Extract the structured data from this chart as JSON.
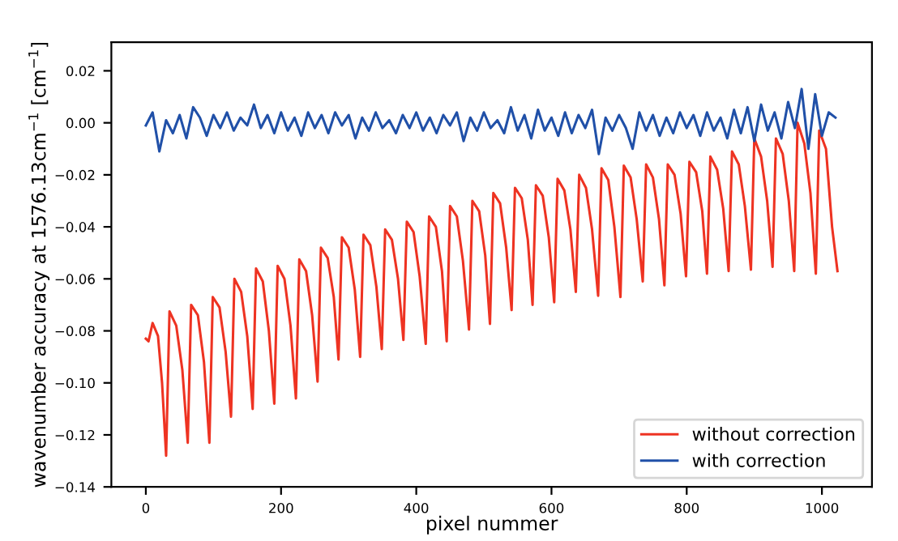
{
  "chart_data": {
    "type": "line",
    "xlabel": "pixel nummer",
    "ylabel": "wavenumber accuracy at 1576.13cm$^{−1}$ [cm$^{−1}$]",
    "xlim": [
      -51,
      1074
    ],
    "xticks": [
      0,
      200,
      400,
      600,
      800,
      1000
    ],
    "ylim": [
      -0.14,
      0.031
    ],
    "yticks": [
      {
        "value": -0.14,
        "label": "−0.14"
      },
      {
        "value": -0.12,
        "label": "−0.12"
      },
      {
        "value": -0.1,
        "label": "−0.10"
      },
      {
        "value": -0.08,
        "label": "−0.08"
      },
      {
        "value": -0.06,
        "label": "−0.06"
      },
      {
        "value": -0.04,
        "label": "−0.04"
      },
      {
        "value": -0.02,
        "label": "−0.02"
      },
      {
        "value": 0,
        "label": "0.00"
      },
      {
        "value": 0.02,
        "label": "0.02"
      }
    ],
    "grid": false,
    "legend": "bottom right",
    "marker": "none",
    "line_style": "solid",
    "series": [
      {
        "name": "without correction",
        "color": "#ee3322",
        "x": [
          0,
          4,
          10,
          18,
          24,
          30,
          35,
          45,
          54,
          62,
          67,
          77,
          86,
          94,
          99,
          109,
          118,
          126,
          131,
          141,
          150,
          158,
          163,
          173,
          182,
          190,
          195,
          205,
          214,
          222,
          227,
          237,
          246,
          254,
          259,
          269,
          278,
          285,
          290,
          300,
          309,
          317,
          322,
          332,
          341,
          349,
          354,
          364,
          373,
          381,
          386,
          396,
          405,
          414,
          419,
          429,
          438,
          445,
          450,
          460,
          469,
          478,
          483,
          493,
          502,
          509,
          514,
          524,
          533,
          541,
          546,
          556,
          565,
          572,
          577,
          587,
          596,
          604,
          609,
          619,
          628,
          636,
          641,
          651,
          660,
          669,
          674,
          684,
          693,
          702,
          707,
          717,
          726,
          735,
          740,
          750,
          759,
          767,
          772,
          782,
          791,
          799,
          804,
          814,
          823,
          830,
          835,
          845,
          854,
          862,
          867,
          877,
          886,
          895,
          900,
          910,
          919,
          927,
          932,
          942,
          951,
          959,
          964,
          974,
          983,
          991,
          996,
          1006,
          1015,
          1023
        ],
        "values": [
          -0.083,
          -0.084,
          -0.077,
          -0.082,
          -0.1,
          -0.128,
          -0.0725,
          -0.078,
          -0.095,
          -0.123,
          -0.07,
          -0.074,
          -0.092,
          -0.123,
          -0.067,
          -0.071,
          -0.088,
          -0.113,
          -0.06,
          -0.065,
          -0.082,
          -0.11,
          -0.056,
          -0.061,
          -0.08,
          -0.108,
          -0.055,
          -0.06,
          -0.078,
          -0.106,
          -0.0525,
          -0.057,
          -0.074,
          -0.0995,
          -0.048,
          -0.052,
          -0.067,
          -0.091,
          -0.044,
          -0.048,
          -0.064,
          -0.09,
          -0.043,
          -0.047,
          -0.063,
          -0.087,
          -0.041,
          -0.045,
          -0.06,
          -0.0835,
          -0.038,
          -0.042,
          -0.059,
          -0.085,
          -0.036,
          -0.04,
          -0.057,
          -0.084,
          -0.032,
          -0.036,
          -0.053,
          -0.0795,
          -0.03,
          -0.034,
          -0.051,
          -0.0773,
          -0.027,
          -0.031,
          -0.048,
          -0.072,
          -0.025,
          -0.029,
          -0.045,
          -0.07,
          -0.024,
          -0.028,
          -0.044,
          -0.069,
          -0.0215,
          -0.026,
          -0.041,
          -0.065,
          -0.02,
          -0.025,
          -0.041,
          -0.0665,
          -0.0175,
          -0.022,
          -0.04,
          -0.067,
          -0.0165,
          -0.021,
          -0.037,
          -0.061,
          -0.016,
          -0.021,
          -0.037,
          -0.0625,
          -0.016,
          -0.02,
          -0.035,
          -0.059,
          -0.015,
          -0.019,
          -0.034,
          -0.058,
          -0.013,
          -0.018,
          -0.033,
          -0.057,
          -0.011,
          -0.016,
          -0.032,
          -0.0565,
          -0.006,
          -0.013,
          -0.03,
          -0.0554,
          -0.006,
          -0.012,
          -0.03,
          -0.057,
          0.0,
          -0.008,
          -0.027,
          -0.058,
          -0.003,
          -0.01,
          -0.04,
          -0.057
        ]
      },
      {
        "name": "with correction",
        "color": "#2050a8",
        "x": [
          0,
          10,
          20,
          30,
          40,
          50,
          60,
          70,
          80,
          90,
          100,
          110,
          120,
          130,
          140,
          150,
          160,
          170,
          180,
          190,
          200,
          210,
          220,
          230,
          240,
          250,
          260,
          270,
          280,
          290,
          300,
          310,
          320,
          330,
          340,
          350,
          360,
          370,
          380,
          390,
          400,
          410,
          420,
          430,
          440,
          450,
          460,
          470,
          480,
          490,
          500,
          510,
          520,
          530,
          540,
          550,
          560,
          570,
          580,
          590,
          600,
          610,
          620,
          630,
          640,
          650,
          660,
          670,
          680,
          690,
          700,
          710,
          720,
          730,
          740,
          750,
          760,
          770,
          780,
          790,
          800,
          810,
          820,
          830,
          840,
          850,
          860,
          870,
          880,
          890,
          900,
          910,
          920,
          930,
          940,
          950,
          960,
          970,
          980,
          990,
          1000,
          1010,
          1020
        ],
        "values": [
          -0.001,
          0.004,
          -0.011,
          0.001,
          -0.004,
          0.003,
          -0.006,
          0.006,
          0.002,
          -0.005,
          0.003,
          -0.002,
          0.004,
          -0.003,
          0.002,
          -0.001,
          0.007,
          -0.002,
          0.003,
          -0.004,
          0.004,
          -0.003,
          0.002,
          -0.005,
          0.004,
          -0.002,
          0.003,
          -0.004,
          0.004,
          -0.001,
          0.003,
          -0.006,
          0.002,
          -0.003,
          0.004,
          -0.002,
          0.001,
          -0.004,
          0.003,
          -0.002,
          0.004,
          -0.003,
          0.002,
          -0.004,
          0.003,
          -0.001,
          0.004,
          -0.007,
          0.002,
          -0.003,
          0.004,
          -0.002,
          0.001,
          -0.004,
          0.006,
          -0.003,
          0.003,
          -0.006,
          0.005,
          -0.003,
          0.002,
          -0.005,
          0.004,
          -0.004,
          0.003,
          -0.002,
          0.005,
          -0.012,
          0.002,
          -0.003,
          0.003,
          -0.002,
          -0.01,
          0.004,
          -0.003,
          0.003,
          -0.005,
          0.002,
          -0.004,
          0.004,
          -0.002,
          0.003,
          -0.005,
          0.004,
          -0.003,
          0.002,
          -0.006,
          0.005,
          -0.004,
          0.006,
          -0.007,
          0.007,
          -0.003,
          0.004,
          -0.006,
          0.008,
          -0.002,
          0.013,
          -0.01,
          0.011,
          -0.005,
          0.004,
          0.002
        ]
      }
    ]
  }
}
